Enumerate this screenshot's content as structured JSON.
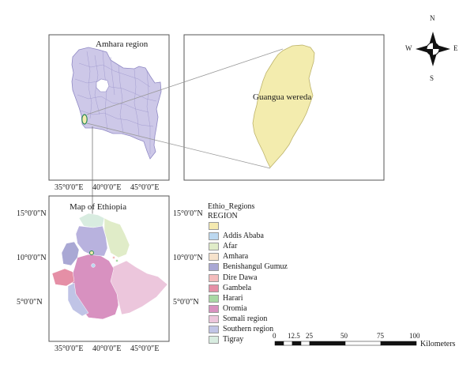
{
  "amhara_panel": {
    "title": "Amhara region"
  },
  "zoom_panel": {
    "title": "Guangua wereda"
  },
  "ethiopia_panel": {
    "title": "Map of Ethiopia"
  },
  "top_axis_labels": [
    "35°0′0″E",
    "40°0′0″E",
    "45°0′0″E"
  ],
  "bottom_axis_labels": [
    "35°0′0″E",
    "40°0′0″E",
    "45°0′0″E"
  ],
  "left_lat_labels": [
    "15°0′0″N",
    "10°0′0″N",
    "5°0′0″N"
  ],
  "right_lat_labels": [
    "15°0′0″N",
    "10°0′0″N",
    "5°0′0″N"
  ],
  "north_arrow": {
    "n": "N",
    "s": "S",
    "e": "E",
    "w": "W"
  },
  "legend": {
    "title": "Ethio_Regions",
    "subtitle": "REGION",
    "items": [
      {
        "label": "",
        "color": "#f5eab0"
      },
      {
        "label": "Addis Ababa",
        "color": "#bcd8f0"
      },
      {
        "label": "Afar",
        "color": "#e0ecc8"
      },
      {
        "label": "Amhara",
        "color": "#f6e2cc"
      },
      {
        "label": "Benishangul Gumuz",
        "color": "#a9a8d4"
      },
      {
        "label": "Dire Dawa",
        "color": "#f4bcbc"
      },
      {
        "label": "Gambela",
        "color": "#e58fa6"
      },
      {
        "label": "Harari",
        "color": "#a8d8a4"
      },
      {
        "label": "Oromia",
        "color": "#d891c0"
      },
      {
        "label": "Somali region",
        "color": "#ecc6dc"
      },
      {
        "label": "Southern region",
        "color": "#c0c4e6"
      },
      {
        "label": "Tigray",
        "color": "#d8ece0"
      }
    ]
  },
  "scale_bar": {
    "ticks": [
      "0",
      "12.5",
      "25",
      "50",
      "75",
      "100"
    ],
    "unit": "Kilometers"
  },
  "colors": {
    "amhara_fill": "#cdc8e8",
    "amhara_lines": "#8f88c4",
    "guangua_fill": "#f3ecae",
    "frame": "#555555"
  }
}
